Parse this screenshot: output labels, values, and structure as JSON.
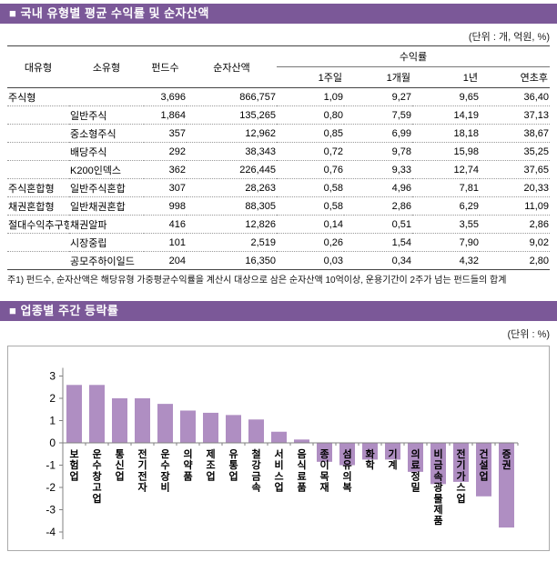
{
  "colors": {
    "header_purple": "#7B5898",
    "bar_fill": "#AF8EC2",
    "axis_gray": "#808080",
    "table_line": "#444444"
  },
  "section1": {
    "title": "■ 국내 유형별 평균 수익률 및 순자산액",
    "unit_note": "(단위 : 개, 억원, %)",
    "table": {
      "headers": {
        "maintype": "대유형",
        "subtype": "소유형",
        "funds": "펀드수",
        "assets": "순자산액",
        "returns_group": "수익률",
        "sub": [
          "1주일",
          "1개월",
          "1년",
          "연초후"
        ]
      },
      "rows": [
        {
          "maintype": "주식형",
          "subtype": "",
          "funds": "3,696",
          "assets": "866,757",
          "w1": "1,09",
          "m1": "9,27",
          "y1": "9,65",
          "ytd": "36,40"
        },
        {
          "maintype": "",
          "subtype": "일반주식",
          "funds": "1,864",
          "assets": "135,265",
          "w1": "0,80",
          "m1": "7,59",
          "y1": "14,19",
          "ytd": "37,13"
        },
        {
          "maintype": "",
          "subtype": "중소형주식",
          "funds": "357",
          "assets": "12,962",
          "w1": "0,85",
          "m1": "6,99",
          "y1": "18,18",
          "ytd": "38,67"
        },
        {
          "maintype": "",
          "subtype": "배당주식",
          "funds": "292",
          "assets": "38,343",
          "w1": "0,72",
          "m1": "9,78",
          "y1": "15,98",
          "ytd": "35,25"
        },
        {
          "maintype": "",
          "subtype": "K200인덱스",
          "funds": "362",
          "assets": "226,445",
          "w1": "0,76",
          "m1": "9,33",
          "y1": "12,74",
          "ytd": "37,65"
        },
        {
          "maintype": "주식혼합형",
          "subtype": "일반주식혼합",
          "funds": "307",
          "assets": "28,263",
          "w1": "0,58",
          "m1": "4,96",
          "y1": "7,81",
          "ytd": "20,33"
        },
        {
          "maintype": "채권혼합형",
          "subtype": "일반채권혼합",
          "funds": "998",
          "assets": "88,305",
          "w1": "0,58",
          "m1": "2,86",
          "y1": "6,29",
          "ytd": "11,09"
        },
        {
          "maintype": "절대수익추구형",
          "subtype": "채권알파",
          "funds": "416",
          "assets": "12,826",
          "w1": "0,14",
          "m1": "0,51",
          "y1": "3,55",
          "ytd": "2,86"
        },
        {
          "maintype": "",
          "subtype": "시장중립",
          "funds": "101",
          "assets": "2,519",
          "w1": "0,26",
          "m1": "1,54",
          "y1": "7,90",
          "ytd": "9,02"
        },
        {
          "maintype": "",
          "subtype": "공모주하이일드",
          "funds": "204",
          "assets": "16,350",
          "w1": "0,03",
          "m1": "0,34",
          "y1": "4,32",
          "ytd": "2,80"
        }
      ]
    },
    "footnote": "주1) 펀드수, 순자산액은 해당유형 가중평균수익률을 계산시 대상으로 삼은 순자산액 10억이상, 운용기간이 2주가 넘는 펀드들의 합계"
  },
  "section2": {
    "title": "■ 업종별 주간 등락률",
    "unit_note": "(단위 : %)"
  },
  "chart_data": {
    "type": "bar",
    "title": "업종별 주간 등락률",
    "xlabel": "",
    "ylabel": "",
    "unit": "%",
    "categories": [
      "보험업",
      "운수창고업",
      "통신업",
      "전기전자",
      "운수장비",
      "의약품",
      "제조업",
      "유통업",
      "철강금속",
      "서비스업",
      "음식료품",
      "종이목재",
      "섬유의복",
      "화학",
      "기계",
      "의료정밀",
      "비금속광물제품",
      "전기가스업",
      "건설업",
      "증권"
    ],
    "values": [
      2.6,
      2.6,
      2.0,
      2.0,
      1.75,
      1.45,
      1.35,
      1.25,
      1.05,
      0.5,
      0.15,
      -0.85,
      -1.0,
      -0.75,
      -0.75,
      -1.3,
      -1.85,
      -1.75,
      -2.4,
      -3.8
    ],
    "ylim": [
      -4,
      3
    ],
    "yticks": [
      3,
      2,
      1,
      0,
      -1,
      -2,
      -3,
      -4
    ],
    "grid": false,
    "legend": false,
    "bar_color": "#AF8EC2"
  }
}
